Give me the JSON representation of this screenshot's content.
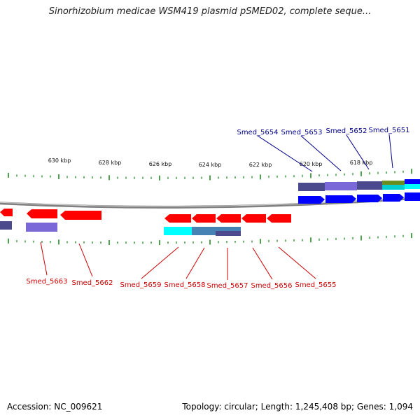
{
  "title": "Sinorhizobium medicae WSM419 plasmid pSMED02, complete seque...",
  "footer": {
    "accession": "Accession: NC_009621",
    "summary": "Topology: circular; Length: 1,245,408 bp; Genes: 1,094"
  },
  "colors": {
    "forward_label": "#00008b",
    "reverse_label": "#cc0000",
    "tick": "#228b22",
    "backbone": "#888888"
  },
  "scale_labels": [
    "630 kbp",
    "628 kbp",
    "626 kbp",
    "624 kbp",
    "622 kbp",
    "620 kbp",
    "618 kbp"
  ],
  "forward_genes": [
    "Smed_5654",
    "Smed_5653",
    "Smed_5652",
    "Smed_5651"
  ],
  "reverse_genes": [
    "Smed_5663",
    "Smed_5662",
    "Smed_5659",
    "Smed_5658",
    "Smed_5657",
    "Smed_5656",
    "Smed_5655"
  ]
}
